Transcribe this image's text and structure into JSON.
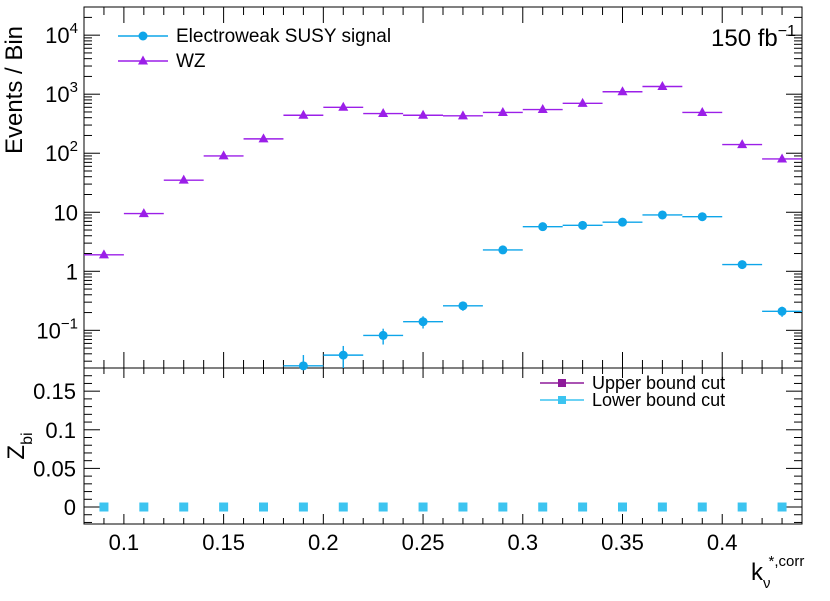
{
  "chart_data": [
    {
      "type": "scatter",
      "panel": "top",
      "ylabel": "Events / Bin",
      "yscale": "log",
      "ylim": [
        0.023,
        30000
      ],
      "xlim": [
        0.08,
        0.44
      ],
      "luminosity_label": "150 fb",
      "luminosity_exp": "−1",
      "legend_position": "top-left",
      "ytick_labels": [
        {
          "value": 0.1,
          "base": "10",
          "exp": "−1"
        },
        {
          "value": 1,
          "base": "1",
          "exp": ""
        },
        {
          "value": 10,
          "base": "10",
          "exp": ""
        },
        {
          "value": 100,
          "base": "10",
          "exp": "2"
        },
        {
          "value": 1000,
          "base": "10",
          "exp": "3"
        },
        {
          "value": 10000,
          "base": "10",
          "exp": "4"
        }
      ],
      "series": [
        {
          "name": "Electroweak SUSY signal",
          "color": "#0ea5e9",
          "marker": "circle",
          "x": [
            0.19,
            0.21,
            0.23,
            0.25,
            0.27,
            0.29,
            0.31,
            0.33,
            0.35,
            0.37,
            0.39,
            0.41,
            0.43
          ],
          "y": [
            0.025,
            0.038,
            0.082,
            0.14,
            0.26,
            2.3,
            5.7,
            6.0,
            6.8,
            9.0,
            8.4,
            1.3,
            0.21
          ]
        },
        {
          "name": "WZ",
          "color": "#9b1fe8",
          "marker": "triangle",
          "x": [
            0.09,
            0.11,
            0.13,
            0.15,
            0.17,
            0.19,
            0.21,
            0.23,
            0.25,
            0.27,
            0.29,
            0.31,
            0.33,
            0.35,
            0.37,
            0.39,
            0.41,
            0.43
          ],
          "y": [
            1.9,
            9.5,
            35,
            90,
            175,
            440,
            600,
            470,
            440,
            430,
            490,
            550,
            700,
            1100,
            1350,
            490,
            140,
            80
          ]
        }
      ]
    },
    {
      "type": "scatter",
      "panel": "bottom",
      "xlabel_base": "k",
      "xlabel_sub": "ν",
      "xlabel_sup": "*,corr",
      "ylabel_base": "Z",
      "ylabel_sub": "bi",
      "ylim": [
        -0.022,
        0.18
      ],
      "xlim": [
        0.08,
        0.44
      ],
      "ytick_labels": [
        "0",
        "0.05",
        "0.1",
        "0.15"
      ],
      "xtick_labels": [
        "0.1",
        "0.15",
        "0.2",
        "0.25",
        "0.3",
        "0.35",
        "0.4"
      ],
      "legend_position": "top-right",
      "series": [
        {
          "name": "Upper bound cut",
          "color": "#8e1a9a",
          "marker": "square",
          "x": [],
          "y": []
        },
        {
          "name": "Lower bound cut",
          "color": "#3cc4f0",
          "marker": "square",
          "x": [
            0.09,
            0.11,
            0.13,
            0.15,
            0.17,
            0.19,
            0.21,
            0.23,
            0.25,
            0.27,
            0.29,
            0.31,
            0.33,
            0.35,
            0.37,
            0.39,
            0.41,
            0.43
          ],
          "y": [
            0,
            0,
            0,
            0,
            0,
            0,
            0,
            0,
            0,
            0,
            0,
            0,
            0,
            0,
            0,
            0,
            0,
            0
          ]
        }
      ]
    }
  ]
}
